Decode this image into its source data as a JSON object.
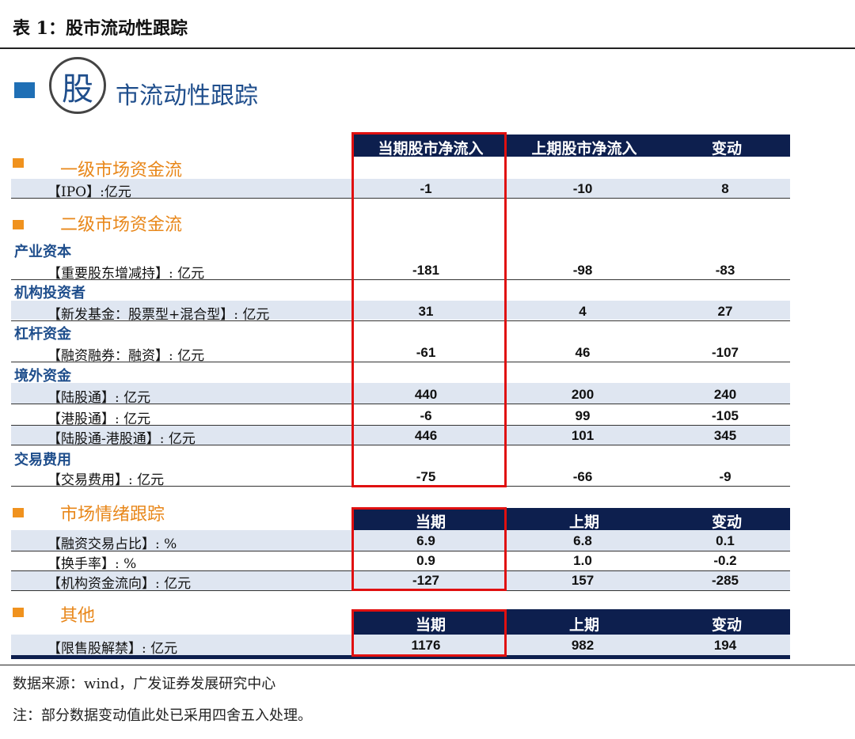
{
  "caption": "表 1：股市流动性跟踪",
  "logo": {
    "char": "股",
    "title": "市流动性跟踪"
  },
  "headers": {
    "main": [
      "当期股市净流入",
      "上期股市净流入",
      "变动"
    ],
    "sentiment": [
      "当期",
      "上期",
      "变动"
    ],
    "other": [
      "当期",
      "上期",
      "变动"
    ]
  },
  "sections": {
    "primary": "一级市场资金流",
    "secondary": "二级市场资金流",
    "sentiment": "市场情绪跟踪",
    "other": "其他"
  },
  "subgroups": {
    "industry": "产业资本",
    "institution": "机构投资者",
    "leverage": "杠杆资金",
    "foreign": "境外资金",
    "fees": "交易费用"
  },
  "rows": [
    {
      "label": "【IPO】:亿元",
      "current": "-1",
      "previous": "-10",
      "change": "8"
    },
    {
      "label": "【重要股东增减持】: 亿元",
      "current": "-181",
      "previous": "-98",
      "change": "-83"
    },
    {
      "label": "【新发基金：股票型+混合型】: 亿元",
      "current": "31",
      "previous": "4",
      "change": "27"
    },
    {
      "label": "【融资融券：融资】: 亿元",
      "current": "-61",
      "previous": "46",
      "change": "-107"
    },
    {
      "label": "【陆股通】: 亿元",
      "current": "440",
      "previous": "200",
      "change": "240"
    },
    {
      "label": "【港股通】: 亿元",
      "current": "-6",
      "previous": "99",
      "change": "-105"
    },
    {
      "label": "【陆股通-港股通】: 亿元",
      "current": "446",
      "previous": "101",
      "change": "345"
    },
    {
      "label": "【交易费用】: 亿元",
      "current": "-75",
      "previous": "-66",
      "change": "-9"
    },
    {
      "label": "【融资交易占比】: %",
      "current": "6.9",
      "previous": "6.8",
      "change": "0.1"
    },
    {
      "label": "【换手率】: %",
      "current": "0.9",
      "previous": "1.0",
      "change": "-0.2"
    },
    {
      "label": "【机构资金流向】: 亿元",
      "current": "-127",
      "previous": "157",
      "change": "-285"
    },
    {
      "label": "【限售股解禁】: 亿元",
      "current": "1176",
      "previous": "982",
      "change": "194"
    }
  ],
  "notes": {
    "source": "数据来源：wind，广发证券发展研究中心",
    "note": "注：部分数据变动值此处已采用四舍五入处理。"
  },
  "colors": {
    "header_bar": "#0d1f4e",
    "accent_orange": "#e8871a",
    "title_blue": "#1f4e8c",
    "highlight_red": "#e01010",
    "row_shade": "#dfe6f1"
  }
}
